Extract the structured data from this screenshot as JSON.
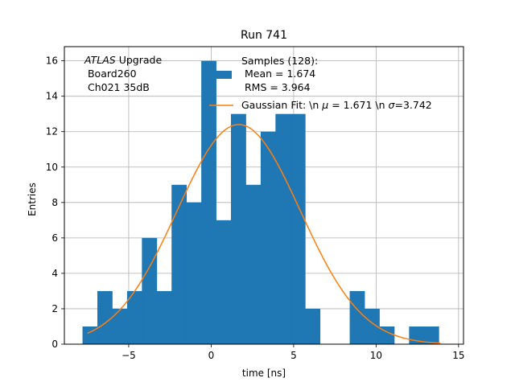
{
  "chart_data": {
    "type": "bar",
    "title": "Run 741",
    "xlabel": "time [ns]",
    "ylabel": "Entries",
    "xlim": [
      -8.9,
      15.3
    ],
    "ylim": [
      0,
      16.8
    ],
    "grid": true,
    "x_ticks": [
      -5,
      0,
      5,
      10,
      15
    ],
    "y_ticks": [
      0,
      2,
      4,
      6,
      8,
      10,
      12,
      14,
      16
    ],
    "bins": {
      "edges": [
        -7.8,
        -6.9,
        -6.0,
        -5.1,
        -4.2,
        -3.3,
        -2.4,
        -1.5,
        -0.6,
        0.3,
        1.2,
        2.1,
        3.0,
        3.9,
        4.8,
        5.7,
        6.6,
        7.5,
        8.4,
        9.3,
        10.2,
        11.1,
        12.0,
        12.9,
        13.8
      ],
      "counts": [
        1,
        3,
        2,
        3,
        6,
        3,
        9,
        8,
        16,
        7,
        13,
        9,
        12,
        13,
        13,
        2,
        0,
        0,
        3,
        2,
        1,
        0,
        1,
        1
      ],
      "color": "#1f77b4"
    },
    "fit": {
      "mu": 1.671,
      "sigma": 3.742,
      "amplitude": 12.4,
      "x_range": [
        -7.5,
        13.9
      ],
      "color": "#ff7f0e"
    },
    "annotation": {
      "line1_italic": "ATLAS",
      "line1_rest": " Upgrade",
      "line2": " Board260",
      "line3": " Ch021 35dB"
    },
    "legend": {
      "placement": "top-right",
      "hist_label_lines": [
        "Samples (128):",
        " Mean = 1.674",
        " RMS = 3.964"
      ],
      "fit_label_prefix": "Gaussian Fit: \\n ",
      "fit_label_mu_sym": "μ",
      "fit_label_mid": " = 1.671 \\n ",
      "fit_label_sigma_sym": "σ",
      "fit_label_end": "=3.742"
    }
  }
}
